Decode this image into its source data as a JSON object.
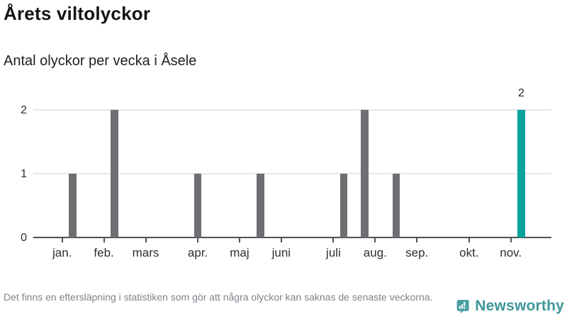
{
  "page": {
    "title": "Årets viltolyckor",
    "subtitle": "Antal olyckor per vecka i Åsele",
    "footnote": "Det finns en eftersläpning i statistiken som gör att några olyckor kan saknas de senaste veckorna.",
    "brand": {
      "name": "Newsworthy",
      "icon": "newsworthy-bar-chart-exclamation-badge",
      "text_color": "#3d979a",
      "badge_color": "#4aa0a2"
    }
  },
  "chart_data": {
    "type": "bar",
    "title": "Årets viltolyckor",
    "subtitle": "Antal olyckor per vecka i Åsele",
    "x_unit": "vecka",
    "ylim": [
      0,
      2
    ],
    "y_ticks": [
      0,
      1,
      2
    ],
    "grid": true,
    "legend": false,
    "bar_color": "#6e6e73",
    "highlight_color": "#0aa29d",
    "axis_color": "#515157",
    "months": [
      {
        "label": "jan.",
        "week": 2
      },
      {
        "label": "feb.",
        "week": 6
      },
      {
        "label": "mars",
        "week": 10
      },
      {
        "label": "apr.",
        "week": 15
      },
      {
        "label": "maj",
        "week": 19
      },
      {
        "label": "juni",
        "week": 23
      },
      {
        "label": "juli",
        "week": 28
      },
      {
        "label": "aug.",
        "week": 32
      },
      {
        "label": "sep.",
        "week": 36
      },
      {
        "label": "okt.",
        "week": 41
      },
      {
        "label": "nov.",
        "week": 45
      }
    ],
    "bars": [
      {
        "week": 3,
        "value": 1
      },
      {
        "week": 7,
        "value": 2
      },
      {
        "week": 15,
        "value": 1
      },
      {
        "week": 21,
        "value": 1
      },
      {
        "week": 29,
        "value": 1
      },
      {
        "week": 31,
        "value": 2
      },
      {
        "week": 34,
        "value": 1
      },
      {
        "week": 46,
        "value": 2,
        "highlight": true,
        "label": "2"
      }
    ]
  }
}
